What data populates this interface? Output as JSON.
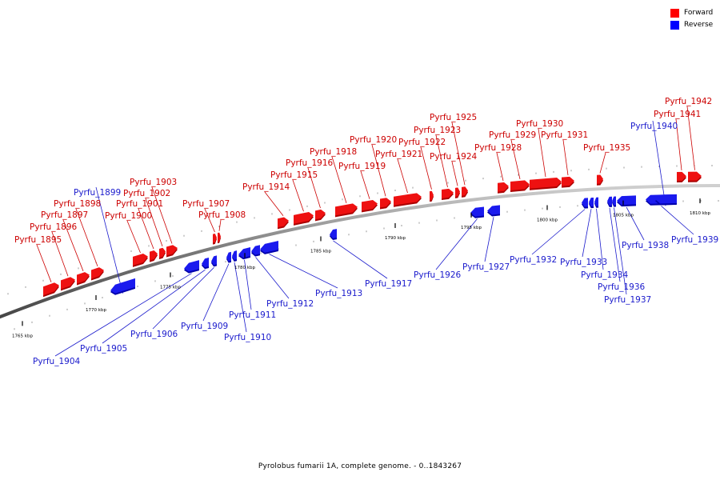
{
  "legend": {
    "forward": {
      "label": "Forward",
      "color": "#ff0000"
    },
    "reverse": {
      "label": "Reverse",
      "color": "#0000ff"
    }
  },
  "caption": "Pyrolobus fumarii 1A, complete genome. - 0..1843267",
  "colors": {
    "forward": "#ee1111",
    "forward_dark": "#aa0000",
    "reverse": "#1a1aee",
    "reverse_dark": "#0000aa",
    "forward_text": "#cc0000",
    "reverse_text": "#1a1acc",
    "axis": "#888888"
  },
  "scale_labels": [
    "1765 kbp",
    "1770 kbp",
    "1775 kbp",
    "1780 kbp",
    "1785 kbp",
    "1790 kbp",
    "1795 kbp",
    "1800 kbp",
    "1805 kbp",
    "1810 kbp"
  ],
  "genes": [
    {
      "label": "Pyrfu_1895",
      "strand": "forward"
    },
    {
      "label": "Pyrfu_1896",
      "strand": "forward"
    },
    {
      "label": "Pyrfu_1897",
      "strand": "forward"
    },
    {
      "label": "Pyrfu_1898",
      "strand": "forward"
    },
    {
      "label": "Pyrfu_1899",
      "strand": "reverse"
    },
    {
      "label": "Pyrfu_1900",
      "strand": "forward"
    },
    {
      "label": "Pyrfu_1901",
      "strand": "forward"
    },
    {
      "label": "Pyrfu_1902",
      "strand": "forward"
    },
    {
      "label": "Pyrfu_1903",
      "strand": "forward"
    },
    {
      "label": "Pyrfu_1904",
      "strand": "reverse"
    },
    {
      "label": "Pyrfu_1905",
      "strand": "reverse"
    },
    {
      "label": "Pyrfu_1906",
      "strand": "reverse"
    },
    {
      "label": "Pyrfu_1907",
      "strand": "forward"
    },
    {
      "label": "Pyrfu_1908",
      "strand": "forward"
    },
    {
      "label": "Pyrfu_1909",
      "strand": "reverse"
    },
    {
      "label": "Pyrfu_1910",
      "strand": "reverse"
    },
    {
      "label": "Pyrfu_1911",
      "strand": "reverse"
    },
    {
      "label": "Pyrfu_1912",
      "strand": "reverse"
    },
    {
      "label": "Pyrfu_1913",
      "strand": "reverse"
    },
    {
      "label": "Pyrfu_1914",
      "strand": "forward"
    },
    {
      "label": "Pyrfu_1915",
      "strand": "forward"
    },
    {
      "label": "Pyrfu_1916",
      "strand": "forward"
    },
    {
      "label": "Pyrfu_1917",
      "strand": "reverse"
    },
    {
      "label": "Pyrfu_1918",
      "strand": "forward"
    },
    {
      "label": "Pyrfu_1919",
      "strand": "forward"
    },
    {
      "label": "Pyrfu_1920",
      "strand": "forward"
    },
    {
      "label": "Pyrfu_1921",
      "strand": "forward"
    },
    {
      "label": "Pyrfu_1922",
      "strand": "forward"
    },
    {
      "label": "Pyrfu_1923",
      "strand": "forward"
    },
    {
      "label": "Pyrfu_1924",
      "strand": "forward"
    },
    {
      "label": "Pyrfu_1925",
      "strand": "forward"
    },
    {
      "label": "Pyrfu_1926",
      "strand": "reverse"
    },
    {
      "label": "Pyrfu_1927",
      "strand": "reverse"
    },
    {
      "label": "Pyrfu_1928",
      "strand": "forward"
    },
    {
      "label": "Pyrfu_1929",
      "strand": "forward"
    },
    {
      "label": "Pyrfu_1930",
      "strand": "forward"
    },
    {
      "label": "Pyrfu_1931",
      "strand": "forward"
    },
    {
      "label": "Pyrfu_1932",
      "strand": "reverse"
    },
    {
      "label": "Pyrfu_1933",
      "strand": "reverse"
    },
    {
      "label": "Pyrfu_1934",
      "strand": "reverse"
    },
    {
      "label": "Pyrfu_1935",
      "strand": "forward"
    },
    {
      "label": "Pyrfu_1936",
      "strand": "reverse"
    },
    {
      "label": "Pyrfu_1937",
      "strand": "reverse"
    },
    {
      "label": "Pyrfu_1938",
      "strand": "reverse"
    },
    {
      "label": "Pyrfu_1939",
      "strand": "reverse"
    },
    {
      "label": "Pyrfu_1940",
      "strand": "reverse"
    },
    {
      "label": "Pyrfu_1941",
      "strand": "forward"
    },
    {
      "label": "Pyrfu_1942",
      "strand": "forward"
    }
  ]
}
